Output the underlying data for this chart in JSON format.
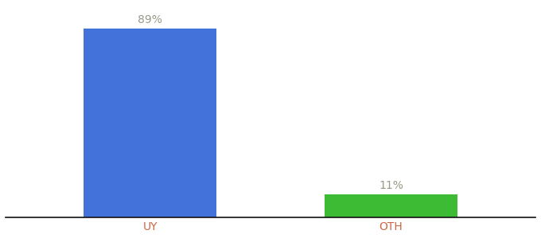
{
  "categories": [
    "UY",
    "OTH"
  ],
  "values": [
    89,
    11
  ],
  "bar_colors": [
    "#4472db",
    "#3dbb35"
  ],
  "labels": [
    "89%",
    "11%"
  ],
  "background_color": "#ffffff",
  "ylim": [
    0,
    100
  ],
  "bar_width": 0.55,
  "label_fontsize": 10,
  "tick_fontsize": 10,
  "label_color": "#999988",
  "tick_color": "#cc6644"
}
